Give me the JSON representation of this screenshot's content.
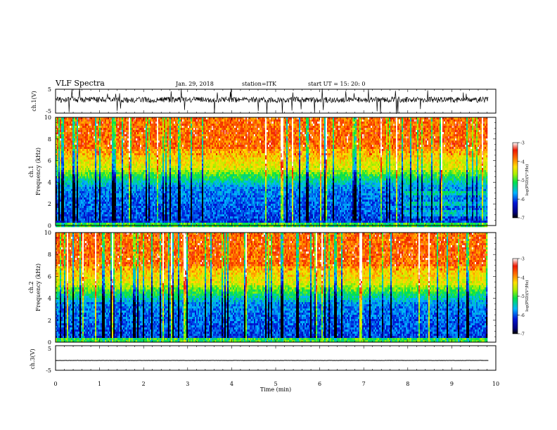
{
  "header": {
    "title": "VLF Spectra",
    "date": "Jan. 29, 2018",
    "station": "station=ITK",
    "start": "start  UT  =   15: 20: 0"
  },
  "chart_data": [
    {
      "type": "line",
      "panel": "ch1-waveform",
      "ylabel": "ch.1(V)",
      "ylim": [
        -5,
        5
      ],
      "yticks": [
        "5",
        "-5"
      ],
      "baseline_V": 0.6,
      "amplitude_V": 1.2
    },
    {
      "type": "heatmap",
      "panel": "ch1-spectrogram",
      "ylabel": "ch.1\nFrequency  (kHz)",
      "ylim": [
        0,
        10
      ],
      "yticks": [
        "0",
        "2",
        "4",
        "6",
        "8",
        "10"
      ],
      "colorbar": {
        "label": "log(PSD)(V²/Hz)",
        "range": [
          -7,
          -3
        ],
        "ticks": [
          "-3",
          "-4",
          "-5",
          "-6",
          "-7"
        ]
      }
    },
    {
      "type": "heatmap",
      "panel": "ch2-spectrogram",
      "ylabel": "ch.2\nFrequency  (kHz)",
      "ylim": [
        0,
        10
      ],
      "yticks": [
        "0",
        "2",
        "4",
        "6",
        "8",
        "10"
      ],
      "colorbar": {
        "label": "log(PSD)(V²/Hz)",
        "range": [
          -7,
          -3
        ],
        "ticks": [
          "-3",
          "-4",
          "-5",
          "-6",
          "-7"
        ]
      }
    },
    {
      "type": "line",
      "panel": "ch3-waveform",
      "ylabel": "ch.3(V)",
      "ylim": [
        -5,
        5
      ],
      "yticks": [
        "5",
        "-5"
      ],
      "baseline_V": -1.0,
      "amplitude_V": 0.05
    }
  ],
  "xaxis": {
    "label": "Time  (min)",
    "xlim": [
      0,
      10
    ],
    "ticks": [
      "0",
      "1",
      "2",
      "3",
      "4",
      "5",
      "6",
      "7",
      "8",
      "9",
      "10"
    ],
    "data_end_min": 9.83
  }
}
